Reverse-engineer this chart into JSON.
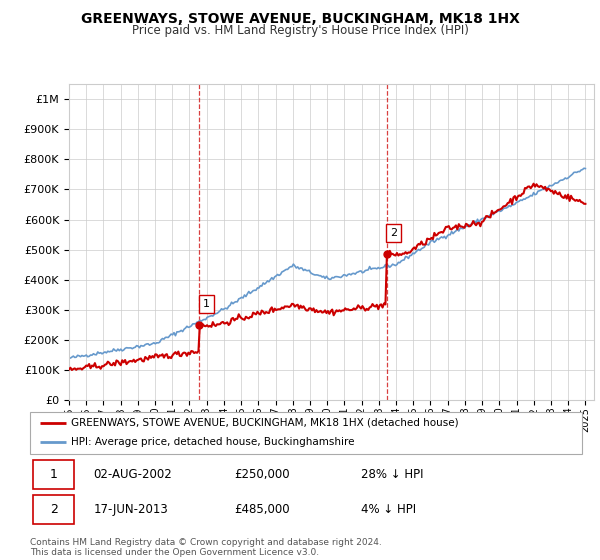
{
  "title": "GREENWAYS, STOWE AVENUE, BUCKINGHAM, MK18 1HX",
  "subtitle": "Price paid vs. HM Land Registry's House Price Index (HPI)",
  "ytick_values": [
    0,
    100000,
    200000,
    300000,
    400000,
    500000,
    600000,
    700000,
    800000,
    900000,
    1000000
  ],
  "ytick_labels": [
    "£0",
    "£100K",
    "£200K",
    "£300K",
    "£400K",
    "£500K",
    "£600K",
    "£700K",
    "£800K",
    "£900K",
    "£1M"
  ],
  "ylim": [
    0,
    1050000
  ],
  "xlim_start": 1995,
  "xlim_end": 2025.5,
  "sale1_x": 2002.58,
  "sale1_y": 250000,
  "sale1_label": "1",
  "sale2_x": 2013.46,
  "sale2_y": 485000,
  "sale2_label": "2",
  "legend_line1": "GREENWAYS, STOWE AVENUE, BUCKINGHAM, MK18 1HX (detached house)",
  "legend_line2": "HPI: Average price, detached house, Buckinghamshire",
  "table_row1": [
    "1",
    "02-AUG-2002",
    "£250,000",
    "28% ↓ HPI"
  ],
  "table_row2": [
    "2",
    "17-JUN-2013",
    "£485,000",
    "4% ↓ HPI"
  ],
  "footer": "Contains HM Land Registry data © Crown copyright and database right 2024.\nThis data is licensed under the Open Government Licence v3.0.",
  "color_red": "#cc0000",
  "color_blue": "#6699cc",
  "background_color": "#ffffff",
  "grid_color": "#cccccc"
}
